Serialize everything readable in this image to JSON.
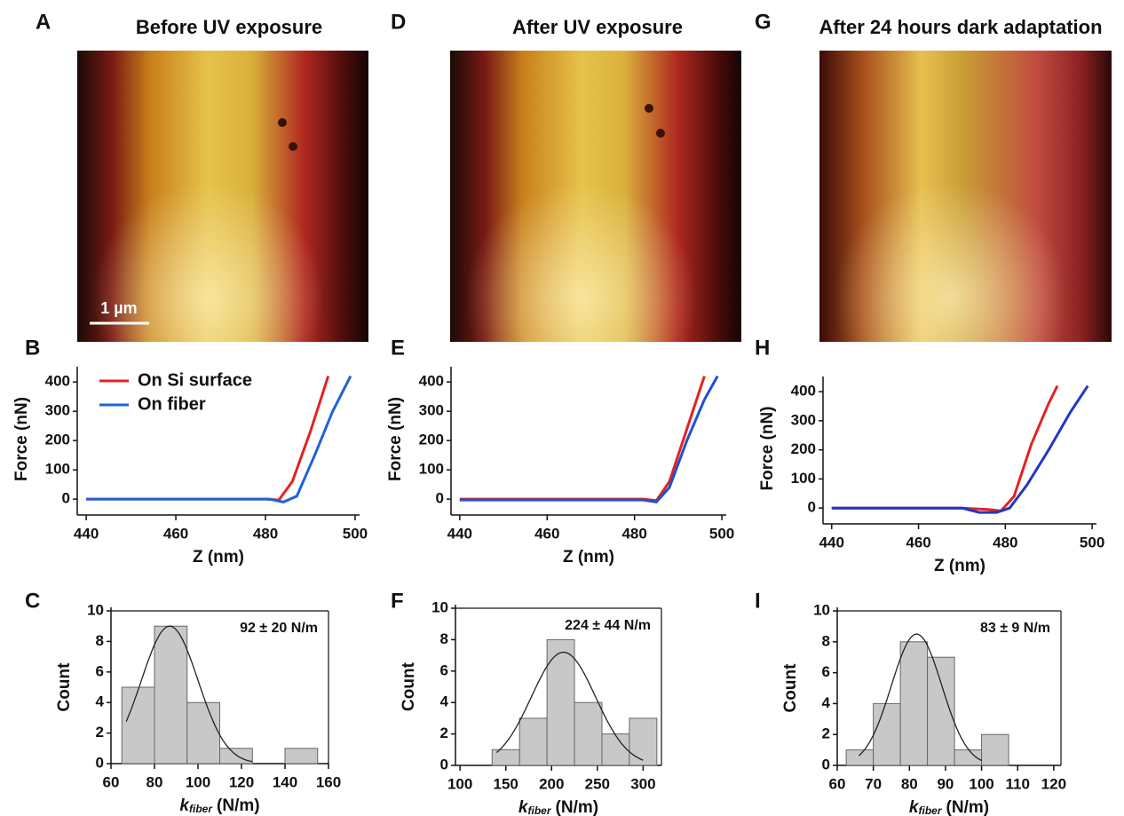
{
  "images": [
    {
      "panel": "A",
      "title": "Before UV exposure",
      "scale_bar": "1 µm"
    },
    {
      "panel": "D",
      "title": "After UV exposure"
    },
    {
      "panel": "G",
      "title": "After 24 hours dark adaptation"
    }
  ],
  "chart_data": [
    {
      "type": "line",
      "panel": "B",
      "xlabel": "Z (nm)",
      "ylabel": "Force (nN)",
      "xlim": [
        438,
        501
      ],
      "ylim": [
        -30,
        440
      ],
      "xticks": [
        440,
        460,
        480,
        500
      ],
      "yticks": [
        0,
        100,
        200,
        300,
        400
      ],
      "legend": "top-left",
      "series": [
        {
          "name": "On Si surface",
          "color": "#e32222",
          "x": [
            440,
            470,
            480,
            483,
            486,
            490,
            494
          ],
          "values": [
            0,
            0,
            0,
            -3,
            60,
            230,
            420
          ]
        },
        {
          "name": "On fiber",
          "color": "#1f62d6",
          "x": [
            440,
            470,
            481,
            484,
            487,
            491,
            495,
            499
          ],
          "values": [
            0,
            0,
            0,
            -10,
            10,
            150,
            300,
            420
          ]
        }
      ]
    },
    {
      "type": "histogram",
      "panel": "C",
      "xlabel": [
        "k",
        "fiber",
        "(N/m)"
      ],
      "ylabel": "Count",
      "annotation": "92 ± 20 N/m",
      "xlim": [
        60,
        160
      ],
      "ylim": [
        0,
        10
      ],
      "xticks": [
        60,
        80,
        100,
        120,
        140,
        160
      ],
      "yticks": [
        0,
        2,
        4,
        6,
        8,
        10
      ],
      "color": "#c8c8c8",
      "bins": [
        65,
        80,
        95,
        110,
        125,
        140,
        155
      ],
      "counts": [
        5,
        9,
        4,
        1,
        0,
        1
      ],
      "fit": {
        "mean": 87,
        "sd": 13,
        "peak": 9,
        "range": [
          67,
          125
        ]
      }
    },
    {
      "type": "line",
      "panel": "E",
      "xlabel": "Z (nm)",
      "ylabel": "Force (nN)",
      "xlim": [
        438,
        501
      ],
      "ylim": [
        -30,
        440
      ],
      "xticks": [
        440,
        460,
        480,
        500
      ],
      "yticks": [
        0,
        100,
        200,
        300,
        400
      ],
      "series": [
        {
          "color": "#e32222",
          "x": [
            440,
            470,
            482,
            485,
            488,
            492,
            496
          ],
          "values": [
            0,
            0,
            0,
            -5,
            60,
            240,
            420
          ]
        },
        {
          "color": "#1f52d0",
          "x": [
            440,
            470,
            482,
            485,
            488,
            492,
            496,
            499
          ],
          "values": [
            -3,
            -3,
            -3,
            -10,
            40,
            200,
            340,
            420
          ]
        }
      ]
    },
    {
      "type": "histogram",
      "panel": "F",
      "xlabel": [
        "k",
        "fiber",
        "(N/m)"
      ],
      "ylabel": "Count",
      "annotation": "224 ± 44 N/m",
      "xlim": [
        95,
        320
      ],
      "ylim": [
        0,
        10
      ],
      "xticks": [
        100,
        150,
        200,
        250,
        300
      ],
      "yticks": [
        0,
        2,
        4,
        6,
        8,
        10
      ],
      "color": "#c8c8c8",
      "bins": [
        135,
        165,
        195,
        225,
        255,
        285,
        315
      ],
      "counts": [
        1,
        3,
        8,
        4,
        2,
        3
      ],
      "fit": {
        "mean": 213,
        "sd": 35,
        "peak": 7.2,
        "range": [
          140,
          300
        ]
      }
    },
    {
      "type": "line",
      "panel": "H",
      "xlabel": "Z (nm)",
      "ylabel": "Force (nN)",
      "xlim": [
        438,
        501
      ],
      "ylim": [
        -30,
        440
      ],
      "xticks": [
        440,
        460,
        480,
        500
      ],
      "yticks": [
        0,
        100,
        200,
        300,
        400
      ],
      "series": [
        {
          "color": "#e32222",
          "x": [
            440,
            470,
            476,
            479,
            482,
            486,
            490,
            492
          ],
          "values": [
            0,
            0,
            -5,
            -10,
            40,
            220,
            360,
            420
          ]
        },
        {
          "color": "#1f38c4",
          "x": [
            440,
            470,
            474,
            478,
            481,
            485,
            490,
            495,
            499
          ],
          "values": [
            0,
            0,
            -15,
            -15,
            0,
            80,
            200,
            330,
            420
          ]
        }
      ]
    },
    {
      "type": "histogram",
      "panel": "I",
      "xlabel": [
        "k",
        "fiber",
        "(N/m)"
      ],
      "ylabel": "Count",
      "annotation": "83 ± 9 N/m",
      "xlim": [
        60,
        122
      ],
      "ylim": [
        0,
        10
      ],
      "xticks": [
        60,
        70,
        80,
        90,
        100,
        110,
        120
      ],
      "yticks": [
        0,
        2,
        4,
        6,
        8,
        10
      ],
      "color": "#c8c8c8",
      "bins": [
        62.5,
        70,
        77.5,
        85,
        92.5,
        100,
        107.5
      ],
      "counts": [
        1,
        4,
        8,
        7,
        1,
        2
      ],
      "fit": {
        "mean": 82,
        "sd": 7,
        "peak": 8.5,
        "range": [
          66,
          100
        ]
      }
    }
  ]
}
